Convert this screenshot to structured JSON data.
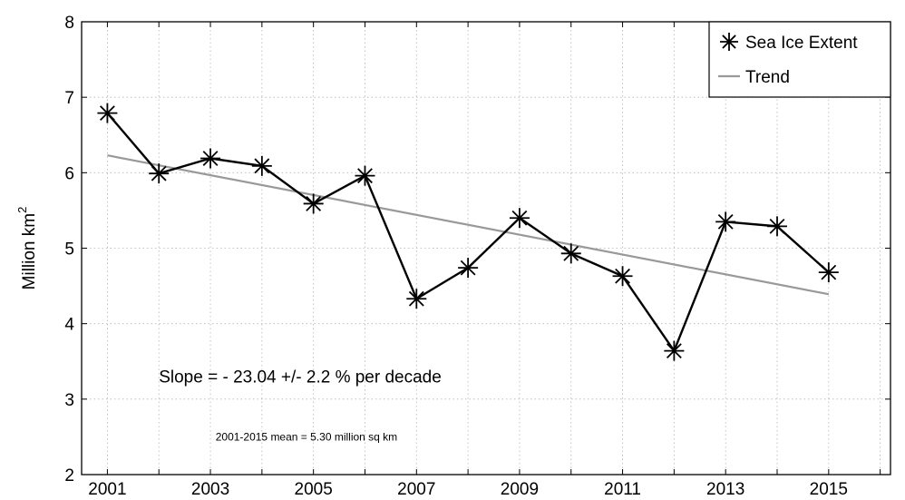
{
  "chart_data": {
    "type": "line",
    "title": "",
    "xlabel": "",
    "ylabel": "Million km",
    "ylabel_superscript": "2",
    "xlim": [
      2000.5,
      2016.2
    ],
    "ylim": [
      2,
      8
    ],
    "x_ticks": [
      2001,
      2003,
      2005,
      2007,
      2009,
      2011,
      2013,
      2015
    ],
    "x_tick_labels": [
      "2001",
      "2003",
      "2005",
      "2007",
      "2009",
      "2011",
      "2013",
      "2015"
    ],
    "x_gridlines": [
      2001,
      2002,
      2003,
      2004,
      2005,
      2006,
      2007,
      2008,
      2009,
      2010,
      2011,
      2012,
      2013,
      2014,
      2015,
      2016
    ],
    "y_ticks": [
      2,
      3,
      4,
      5,
      6,
      7,
      8
    ],
    "y_tick_labels": [
      "2",
      "3",
      "4",
      "5",
      "6",
      "7",
      "8"
    ],
    "grid": true,
    "legend_position": "top-right",
    "series": [
      {
        "name": "Sea Ice Extent",
        "color": "#000000",
        "marker": "asterisk",
        "x": [
          2001,
          2002,
          2003,
          2004,
          2005,
          2006,
          2007,
          2008,
          2009,
          2010,
          2011,
          2012,
          2013,
          2014,
          2015
        ],
        "values": [
          6.79,
          5.99,
          6.19,
          6.09,
          5.59,
          5.96,
          4.33,
          4.74,
          5.4,
          4.93,
          4.63,
          3.64,
          5.35,
          5.29,
          4.68
        ]
      },
      {
        "name": "Trend",
        "color": "#999999",
        "marker": "none",
        "x": [
          2001,
          2015
        ],
        "values": [
          6.23,
          4.39
        ]
      }
    ],
    "annotations": [
      {
        "text": "Slope = - 23.04  +/- 2.2 % per decade",
        "x": 2002,
        "y": 3.22,
        "style": "main"
      },
      {
        "text": "2001-2015 mean = 5.30 million sq km",
        "x": 2003.1,
        "y": 2.45,
        "style": "small"
      }
    ]
  }
}
